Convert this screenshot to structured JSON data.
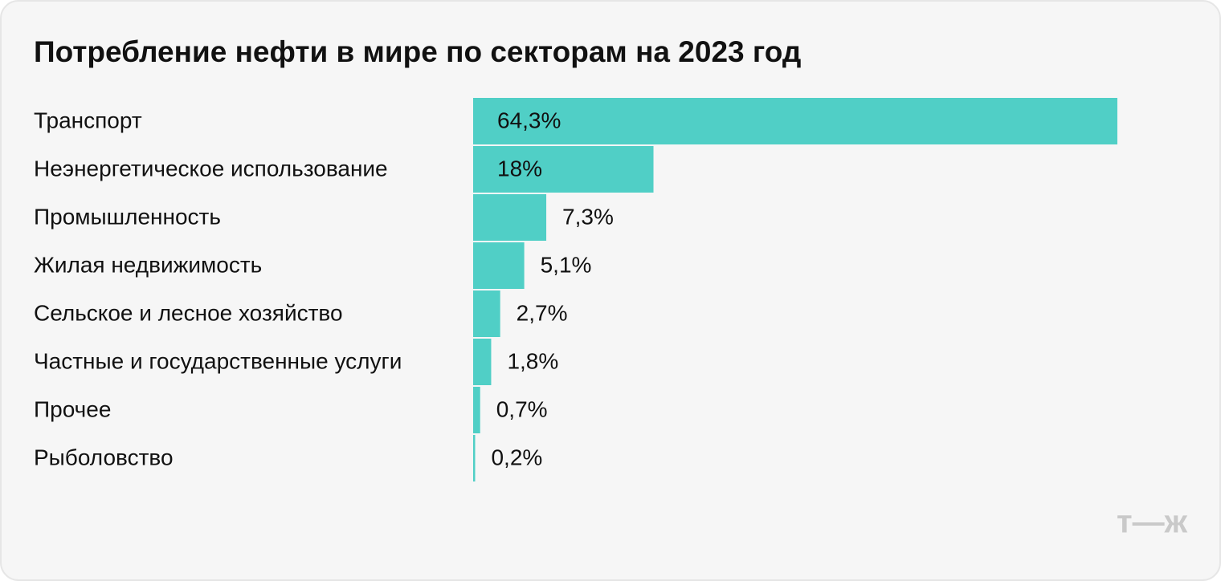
{
  "chart_data": {
    "type": "bar",
    "orientation": "horizontal",
    "title": "Потребление нефти в мире по секторам на 2023 год",
    "categories": [
      "Транспорт",
      "Неэнергетическое использование",
      "Промышленность",
      "Жилая недвижимость",
      "Сельское и лесное хозяйство",
      "Частные и государственные услуги",
      "Прочее",
      "Рыболовство"
    ],
    "values": [
      64.3,
      18,
      7.3,
      5.1,
      2.7,
      1.8,
      0.7,
      0.2
    ],
    "value_labels": [
      "64,3%",
      "18%",
      "7,3%",
      "5,1%",
      "2,7%",
      "1,8%",
      "0,7%",
      "0,2%"
    ],
    "color": "#50cfc6",
    "logo": "т—ж"
  }
}
